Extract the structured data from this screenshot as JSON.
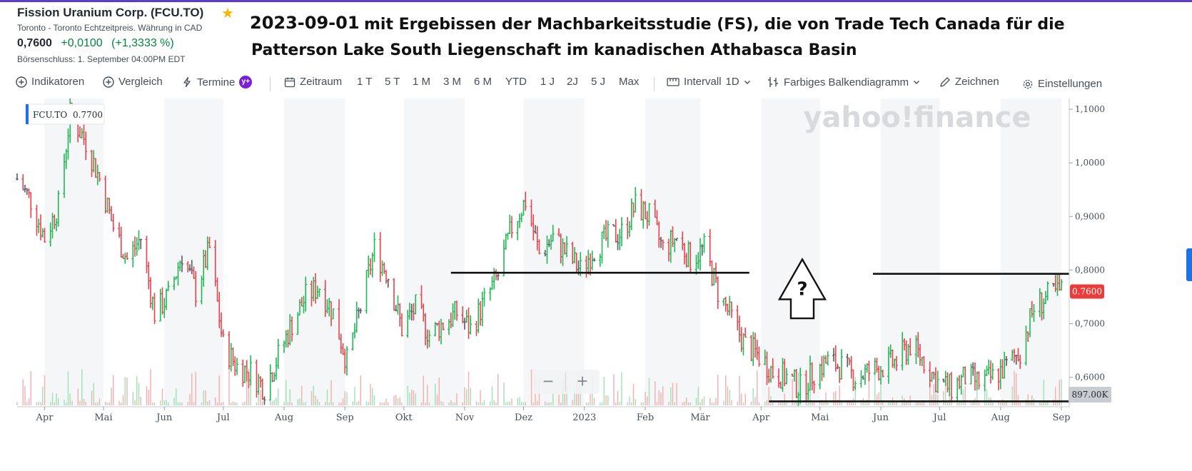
{
  "quote": {
    "title": "Fission Uranium Corp. (FCU.TO)",
    "exchange": "Toronto - Toronto Echtzeitpreis. Währung in CAD",
    "last": "0,7600",
    "change": "+0,0100",
    "change_pct": "(+1,3333 %)",
    "close_note": "Börsenschluss: 1. September 04:00PM EDT"
  },
  "annotation": {
    "date": "2023-09-01",
    "line1": "mit Ergebissen der Machbarkeitsstudie (FS), die von Trade Tech Canada für die",
    "line2": "Patterson Lake South Liegenschaft im kanadischen Athabasca Basin",
    "question": "?"
  },
  "toolbar": {
    "indicators": "Indikatoren",
    "compare": "Vergleich",
    "events": "Termine",
    "events_badge": "y+",
    "range_label": "Zeitraum",
    "ranges": [
      "1 T",
      "5 T",
      "1 M",
      "3 M",
      "6 M",
      "YTD",
      "1 J",
      "2J",
      "5 J",
      "Max"
    ],
    "interval_label": "Intervall",
    "interval_value": "1D",
    "chart_type": "Farbiges Balkendiagramm",
    "draw": "Zeichnen",
    "settings": "Einstellungen"
  },
  "watermark": "yahoo!finance",
  "legend_label": {
    "symbol": "FCU.TO",
    "value": "0.7700"
  },
  "price_tag": "0.7600",
  "volume_tag": "897.00K",
  "zoom": {
    "minus": "−",
    "plus": "+"
  },
  "colors": {
    "up": "#1db954",
    "down": "#e8434a",
    "neutral": "#555c66",
    "price_tag": "#eb3c3c",
    "accent": "#5b3ecf"
  },
  "chart_data": {
    "type": "bar",
    "subtype": "ohlc-colored",
    "symbol": "FCU.TO",
    "y_ticks": [
      "1,1000",
      "1,0000",
      "0,9000",
      "0,8000",
      "0,7000",
      "0,6000"
    ],
    "ylim": [
      0.545,
      1.12
    ],
    "x_ticks": [
      "Apr",
      "Mai",
      "Jun",
      "Jul",
      "Aug",
      "Sep",
      "Okt",
      "Nov",
      "Dez",
      "2023",
      "Feb",
      "Mär",
      "Apr",
      "Mai",
      "Jun",
      "Jul",
      "Aug",
      "Sep"
    ],
    "x_range": [
      "2022-03-18",
      "2023-09-05"
    ],
    "x_tick_dates": [
      "2022-04-01",
      "2022-05-01",
      "2022-06-01",
      "2022-07-01",
      "2022-08-01",
      "2022-09-01",
      "2022-10-01",
      "2022-11-01",
      "2022-12-01",
      "2023-01-01",
      "2023-02-01",
      "2023-03-01",
      "2023-04-01",
      "2023-05-01",
      "2023-06-01",
      "2023-07-01",
      "2023-08-01",
      "2023-09-01"
    ],
    "closes": [
      {
        "date": "2022-03-18",
        "close": 0.97
      },
      {
        "date": "2022-03-25",
        "close": 0.93
      },
      {
        "date": "2022-04-01",
        "close": 0.86
      },
      {
        "date": "2022-04-08",
        "close": 0.92
      },
      {
        "date": "2022-04-14",
        "close": 1.09
      },
      {
        "date": "2022-04-22",
        "close": 1.04
      },
      {
        "date": "2022-04-29",
        "close": 0.97
      },
      {
        "date": "2022-05-06",
        "close": 0.88
      },
      {
        "date": "2022-05-13",
        "close": 0.82
      },
      {
        "date": "2022-05-20",
        "close": 0.86
      },
      {
        "date": "2022-05-27",
        "close": 0.72
      },
      {
        "date": "2022-06-03",
        "close": 0.75
      },
      {
        "date": "2022-06-10",
        "close": 0.83
      },
      {
        "date": "2022-06-17",
        "close": 0.76
      },
      {
        "date": "2022-06-24",
        "close": 0.84
      },
      {
        "date": "2022-07-01",
        "close": 0.66
      },
      {
        "date": "2022-07-08",
        "close": 0.62
      },
      {
        "date": "2022-07-15",
        "close": 0.61
      },
      {
        "date": "2022-07-22",
        "close": 0.58
      },
      {
        "date": "2022-07-29",
        "close": 0.64
      },
      {
        "date": "2022-08-05",
        "close": 0.7
      },
      {
        "date": "2022-08-12",
        "close": 0.75
      },
      {
        "date": "2022-08-19",
        "close": 0.77
      },
      {
        "date": "2022-08-26",
        "close": 0.72
      },
      {
        "date": "2022-09-02",
        "close": 0.63
      },
      {
        "date": "2022-09-09",
        "close": 0.73
      },
      {
        "date": "2022-09-16",
        "close": 0.84
      },
      {
        "date": "2022-09-23",
        "close": 0.79
      },
      {
        "date": "2022-09-30",
        "close": 0.69
      },
      {
        "date": "2022-10-07",
        "close": 0.73
      },
      {
        "date": "2022-10-14",
        "close": 0.68
      },
      {
        "date": "2022-10-21",
        "close": 0.7
      },
      {
        "date": "2022-10-28",
        "close": 0.72
      },
      {
        "date": "2022-11-04",
        "close": 0.69
      },
      {
        "date": "2022-11-11",
        "close": 0.74
      },
      {
        "date": "2022-11-18",
        "close": 0.79
      },
      {
        "date": "2022-11-25",
        "close": 0.88
      },
      {
        "date": "2022-12-02",
        "close": 0.93
      },
      {
        "date": "2022-12-09",
        "close": 0.83
      },
      {
        "date": "2022-12-16",
        "close": 0.86
      },
      {
        "date": "2022-12-23",
        "close": 0.83
      },
      {
        "date": "2022-12-30",
        "close": 0.8
      },
      {
        "date": "2023-01-06",
        "close": 0.84
      },
      {
        "date": "2023-01-13",
        "close": 0.86
      },
      {
        "date": "2023-01-20",
        "close": 0.87
      },
      {
        "date": "2023-01-27",
        "close": 0.92
      },
      {
        "date": "2023-02-03",
        "close": 0.9
      },
      {
        "date": "2023-02-10",
        "close": 0.84
      },
      {
        "date": "2023-02-17",
        "close": 0.86
      },
      {
        "date": "2023-02-24",
        "close": 0.82
      },
      {
        "date": "2023-03-03",
        "close": 0.84
      },
      {
        "date": "2023-03-10",
        "close": 0.76
      },
      {
        "date": "2023-03-17",
        "close": 0.71
      },
      {
        "date": "2023-03-24",
        "close": 0.66
      },
      {
        "date": "2023-03-31",
        "close": 0.64
      },
      {
        "date": "2023-04-07",
        "close": 0.61
      },
      {
        "date": "2023-04-14",
        "close": 0.6
      },
      {
        "date": "2023-04-21",
        "close": 0.58
      },
      {
        "date": "2023-04-28",
        "close": 0.61
      },
      {
        "date": "2023-05-05",
        "close": 0.63
      },
      {
        "date": "2023-05-12",
        "close": 0.62
      },
      {
        "date": "2023-05-19",
        "close": 0.6
      },
      {
        "date": "2023-05-26",
        "close": 0.61
      },
      {
        "date": "2023-06-02",
        "close": 0.62
      },
      {
        "date": "2023-06-09",
        "close": 0.63
      },
      {
        "date": "2023-06-16",
        "close": 0.66
      },
      {
        "date": "2023-06-23",
        "close": 0.63
      },
      {
        "date": "2023-06-30",
        "close": 0.59
      },
      {
        "date": "2023-07-07",
        "close": 0.58
      },
      {
        "date": "2023-07-14",
        "close": 0.6
      },
      {
        "date": "2023-07-21",
        "close": 0.59
      },
      {
        "date": "2023-07-28",
        "close": 0.6
      },
      {
        "date": "2023-08-04",
        "close": 0.62
      },
      {
        "date": "2023-08-11",
        "close": 0.65
      },
      {
        "date": "2023-08-18",
        "close": 0.73
      },
      {
        "date": "2023-08-25",
        "close": 0.75
      },
      {
        "date": "2023-09-01",
        "close": 0.76
      }
    ],
    "annotation_lines": [
      {
        "from": "2022-10-25",
        "to": "2023-03-26",
        "y": 0.795
      },
      {
        "from": "2023-05-28",
        "to": "2023-09-05",
        "y": 0.793
      },
      {
        "from": "2023-04-05",
        "to": "2023-09-05",
        "y": 0.555
      }
    ],
    "arrow": {
      "date": "2023-04-22",
      "from": 0.71,
      "to": 0.82
    },
    "grid": false,
    "legend": "top-left"
  }
}
